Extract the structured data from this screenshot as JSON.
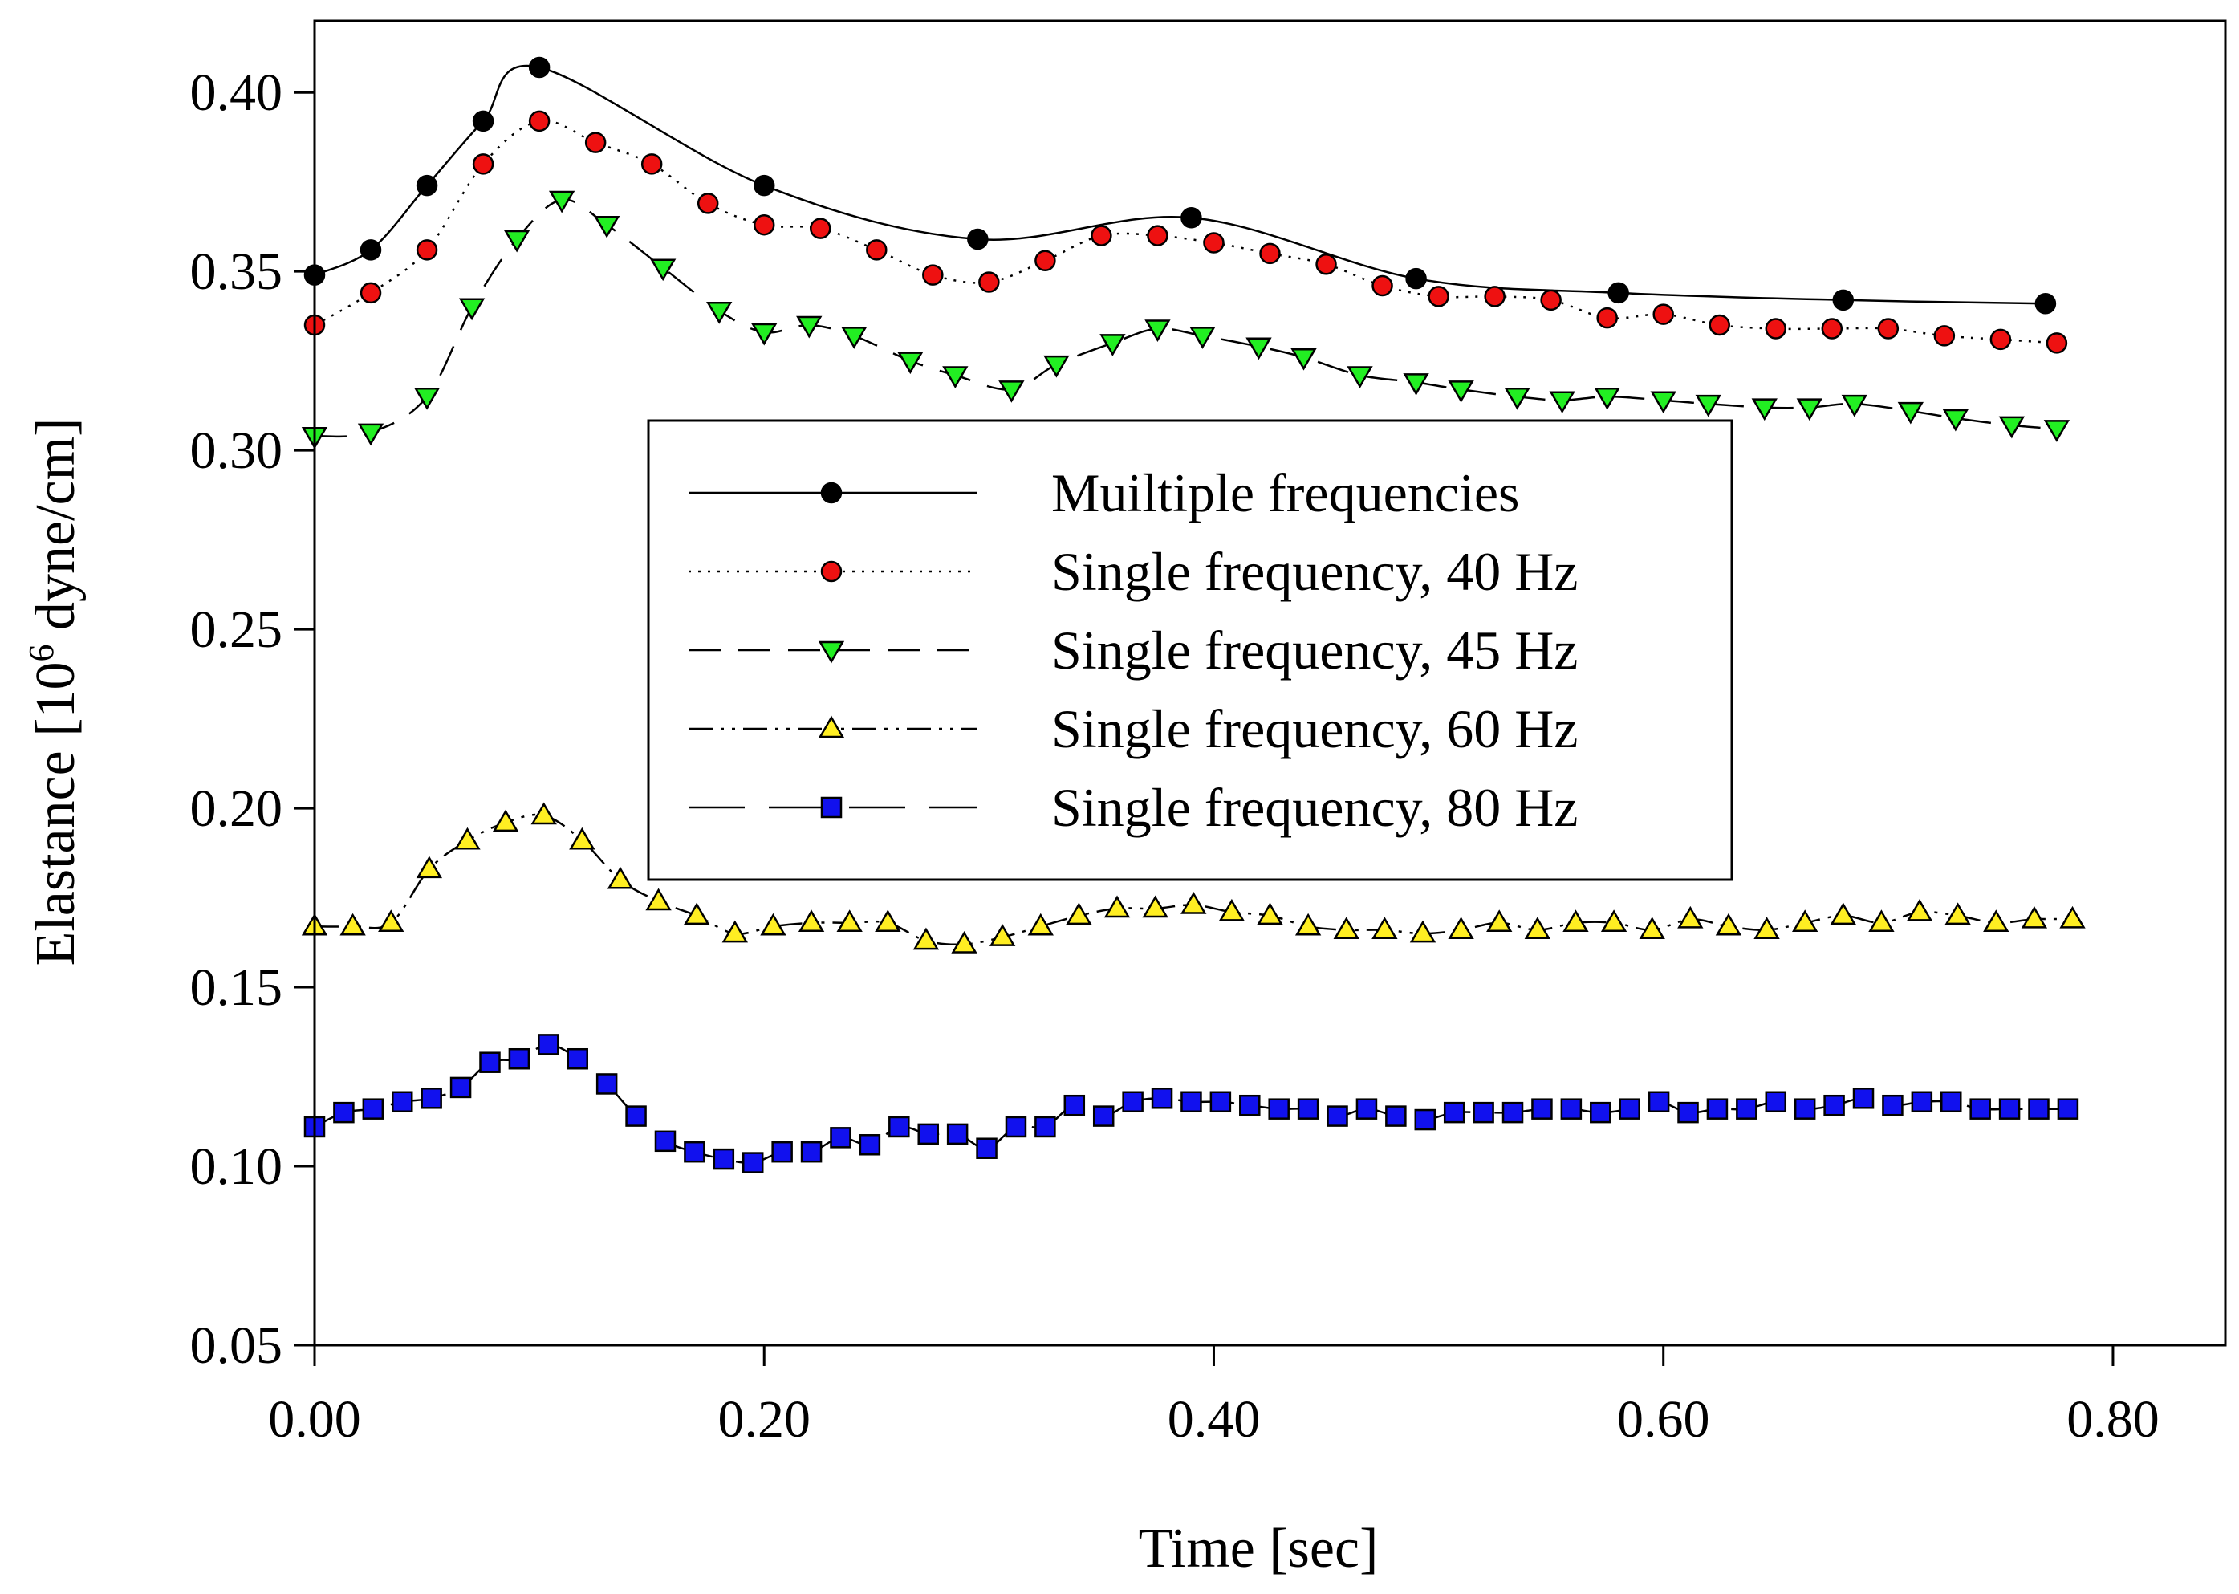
{
  "chart_data": {
    "type": "line",
    "title": "",
    "xlabel": "Time [sec]",
    "ylabel": "Elastance [10",
    "ylabel_superscript": "6",
    "ylabel_suffix": " dyne/cm]",
    "xlim": [
      0.0,
      0.85
    ],
    "ylim": [
      0.05,
      0.42
    ],
    "xticks": [
      0.0,
      0.2,
      0.4,
      0.6,
      0.8
    ],
    "xtick_labels": [
      "0.00",
      "0.20",
      "0.40",
      "0.60",
      "0.80"
    ],
    "yticks": [
      0.05,
      0.1,
      0.15,
      0.2,
      0.25,
      0.3,
      0.35,
      0.4
    ],
    "ytick_labels": [
      "0.05",
      "0.10",
      "0.15",
      "0.20",
      "0.25",
      "0.30",
      "0.35",
      "0.40"
    ],
    "grid": false,
    "legend_position": "center",
    "series": [
      {
        "name": "Muiltiple frequencies",
        "line_style": "solid",
        "marker": "circle",
        "marker_color": "#000000",
        "x": [
          0.0,
          0.025,
          0.05,
          0.075,
          0.1,
          0.2,
          0.295,
          0.39,
          0.49,
          0.58,
          0.68,
          0.77
        ],
        "y": [
          0.349,
          0.356,
          0.374,
          0.392,
          0.407,
          0.374,
          0.359,
          0.365,
          0.348,
          0.344,
          0.342,
          0.341
        ]
      },
      {
        "name": "Single frequency, 40 Hz",
        "line_style": "dotted",
        "marker": "circle",
        "marker_color": "#ee1111",
        "x": [
          0.0,
          0.025,
          0.05,
          0.075,
          0.1,
          0.125,
          0.15,
          0.175,
          0.2,
          0.225,
          0.25,
          0.275,
          0.3,
          0.325,
          0.35,
          0.375,
          0.4,
          0.425,
          0.45,
          0.475,
          0.5,
          0.525,
          0.55,
          0.575,
          0.6,
          0.625,
          0.65,
          0.675,
          0.7,
          0.725,
          0.75,
          0.775
        ],
        "y": [
          0.335,
          0.344,
          0.356,
          0.38,
          0.392,
          0.386,
          0.38,
          0.369,
          0.363,
          0.362,
          0.356,
          0.349,
          0.347,
          0.353,
          0.36,
          0.36,
          0.358,
          0.355,
          0.352,
          0.346,
          0.343,
          0.343,
          0.342,
          0.337,
          0.338,
          0.335,
          0.334,
          0.334,
          0.334,
          0.332,
          0.331,
          0.33
        ]
      },
      {
        "name": "Single frequency, 45 Hz",
        "line_style": "dashed",
        "marker": "triangle-down",
        "marker_color": "#22ee22",
        "x": [
          0.0,
          0.025,
          0.05,
          0.07,
          0.09,
          0.11,
          0.13,
          0.155,
          0.18,
          0.2,
          0.22,
          0.24,
          0.265,
          0.285,
          0.31,
          0.33,
          0.355,
          0.375,
          0.395,
          0.42,
          0.44,
          0.465,
          0.49,
          0.51,
          0.535,
          0.555,
          0.575,
          0.6,
          0.62,
          0.645,
          0.665,
          0.685,
          0.71,
          0.73,
          0.755,
          0.775
        ],
        "y": [
          0.304,
          0.305,
          0.315,
          0.34,
          0.359,
          0.37,
          0.363,
          0.351,
          0.339,
          0.333,
          0.335,
          0.332,
          0.325,
          0.321,
          0.317,
          0.324,
          0.33,
          0.334,
          0.332,
          0.329,
          0.326,
          0.321,
          0.319,
          0.317,
          0.315,
          0.314,
          0.315,
          0.314,
          0.313,
          0.312,
          0.312,
          0.313,
          0.311,
          0.309,
          0.307,
          0.306
        ]
      },
      {
        "name": "Single frequency, 60 Hz",
        "line_style": "dash-dot-dot",
        "marker": "triangle-up",
        "marker_color": "#ffee22",
        "x": [
          0.0,
          0.017,
          0.034,
          0.051,
          0.068,
          0.085,
          0.102,
          0.119,
          0.136,
          0.153,
          0.17,
          0.187,
          0.204,
          0.221,
          0.238,
          0.255,
          0.272,
          0.289,
          0.306,
          0.323,
          0.34,
          0.357,
          0.374,
          0.391,
          0.408,
          0.425,
          0.442,
          0.459,
          0.476,
          0.493,
          0.51,
          0.527,
          0.544,
          0.561,
          0.578,
          0.595,
          0.612,
          0.629,
          0.646,
          0.663,
          0.68,
          0.697,
          0.714,
          0.731,
          0.748,
          0.765,
          0.782
        ],
        "y": [
          0.167,
          0.167,
          0.168,
          0.183,
          0.191,
          0.196,
          0.198,
          0.191,
          0.18,
          0.174,
          0.17,
          0.165,
          0.167,
          0.168,
          0.168,
          0.168,
          0.163,
          0.162,
          0.164,
          0.167,
          0.17,
          0.172,
          0.172,
          0.173,
          0.171,
          0.17,
          0.167,
          0.166,
          0.166,
          0.165,
          0.166,
          0.168,
          0.166,
          0.168,
          0.168,
          0.166,
          0.169,
          0.167,
          0.166,
          0.168,
          0.17,
          0.168,
          0.171,
          0.17,
          0.168,
          0.169,
          0.169
        ]
      },
      {
        "name": "Single frequency, 80 Hz",
        "line_style": "long-dash",
        "marker": "square",
        "marker_color": "#1111ee",
        "x": [
          0.0,
          0.013,
          0.026,
          0.039,
          0.052,
          0.065,
          0.078,
          0.091,
          0.104,
          0.117,
          0.13,
          0.143,
          0.156,
          0.169,
          0.182,
          0.195,
          0.208,
          0.221,
          0.234,
          0.247,
          0.26,
          0.273,
          0.286,
          0.299,
          0.312,
          0.325,
          0.338,
          0.351,
          0.364,
          0.377,
          0.39,
          0.403,
          0.416,
          0.429,
          0.442,
          0.455,
          0.468,
          0.481,
          0.494,
          0.507,
          0.52,
          0.533,
          0.546,
          0.559,
          0.572,
          0.585,
          0.598,
          0.611,
          0.624,
          0.637,
          0.65,
          0.663,
          0.676,
          0.689,
          0.702,
          0.715,
          0.728,
          0.741,
          0.754,
          0.767,
          0.78
        ],
        "y": [
          0.111,
          0.115,
          0.116,
          0.118,
          0.119,
          0.122,
          0.129,
          0.13,
          0.134,
          0.13,
          0.123,
          0.114,
          0.107,
          0.104,
          0.102,
          0.101,
          0.104,
          0.104,
          0.108,
          0.106,
          0.111,
          0.109,
          0.109,
          0.105,
          0.111,
          0.111,
          0.117,
          0.114,
          0.118,
          0.119,
          0.118,
          0.118,
          0.117,
          0.116,
          0.116,
          0.114,
          0.116,
          0.114,
          0.113,
          0.115,
          0.115,
          0.115,
          0.116,
          0.116,
          0.115,
          0.116,
          0.118,
          0.115,
          0.116,
          0.116,
          0.118,
          0.116,
          0.117,
          0.119,
          0.117,
          0.118,
          0.118,
          0.116,
          0.116,
          0.116,
          0.116
        ]
      }
    ]
  }
}
